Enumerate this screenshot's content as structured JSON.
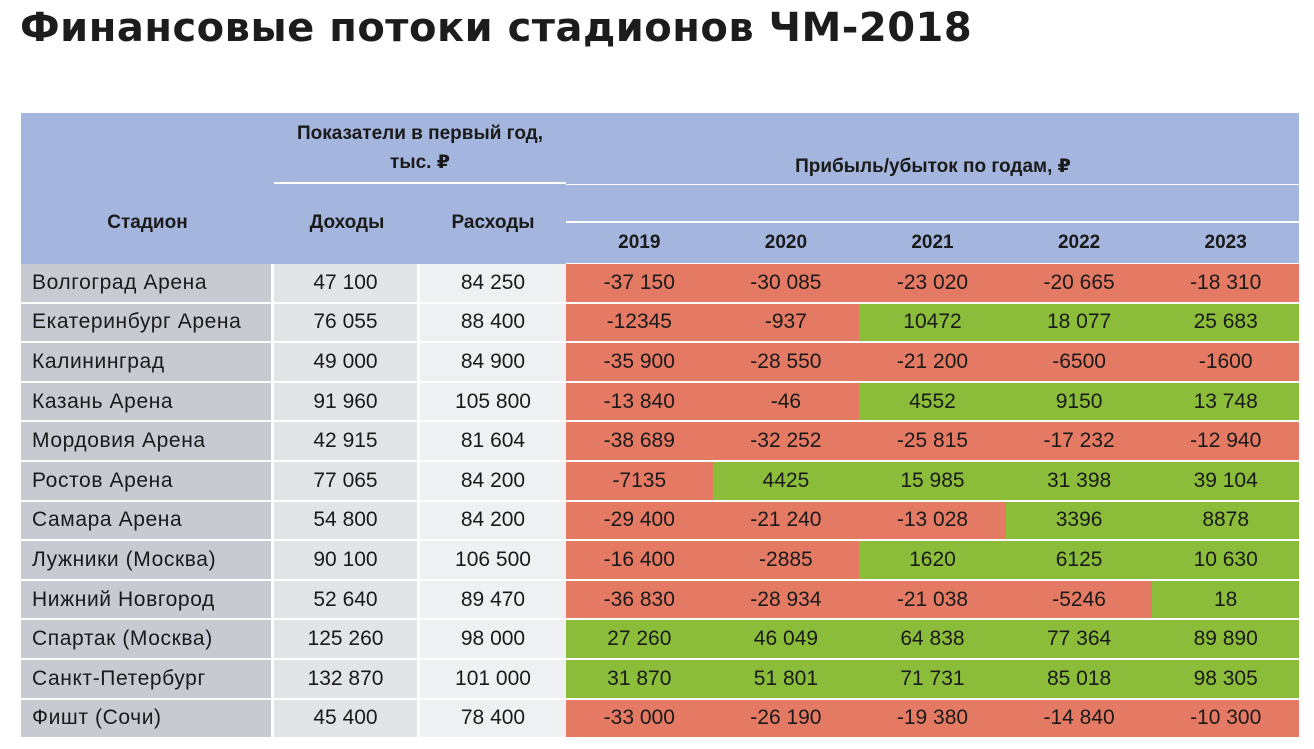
{
  "title": "Финансовые потоки стадионов ЧМ-2018",
  "headers": {
    "stadium": "Стадион",
    "first_year_group": "Показатели в первый год, тыс. ₽",
    "income": "Доходы",
    "expenses": "Расходы",
    "profit_group": "Прибыль/убыток по годам, ₽",
    "years": [
      "2019",
      "2020",
      "2021",
      "2022",
      "2023"
    ]
  },
  "colors": {
    "header_bg": "#a4b6de",
    "loss": "#e57a64",
    "profit": "#8bbd3b",
    "name_bg": "#c7cad1"
  },
  "rows": [
    {
      "name": "Волгоград Арена",
      "income": "47 100",
      "expenses": "84 250",
      "profit": [
        "-37 150",
        "-30 085",
        "-23 020",
        "-20 665",
        "-18 310"
      ]
    },
    {
      "name": "Екатеринбург Арена",
      "income": "76 055",
      "expenses": "88 400",
      "profit": [
        "-12345",
        "-937",
        "10472",
        "18 077",
        "25 683"
      ]
    },
    {
      "name": "Калининград",
      "income": "49 000",
      "expenses": "84 900",
      "profit": [
        "-35 900",
        "-28 550",
        "-21 200",
        "-6500",
        "-1600"
      ]
    },
    {
      "name": "Казань Арена",
      "income": "91 960",
      "expenses": "105 800",
      "profit": [
        "-13 840",
        "-46",
        "4552",
        "9150",
        "13 748"
      ]
    },
    {
      "name": "Мордовия Арена",
      "income": "42 915",
      "expenses": "81 604",
      "profit": [
        "-38 689",
        "-32 252",
        "-25 815",
        "-17 232",
        "-12 940"
      ]
    },
    {
      "name": "Ростов Арена",
      "income": "77 065",
      "expenses": "84 200",
      "profit": [
        "-7135",
        "4425",
        "15 985",
        "31 398",
        "39 104"
      ]
    },
    {
      "name": "Самара Арена",
      "income": "54 800",
      "expenses": "84 200",
      "profit": [
        "-29 400",
        "-21 240",
        "-13 028",
        "3396",
        "8878"
      ]
    },
    {
      "name": "Лужники (Москва)",
      "income": "90 100",
      "expenses": "106 500",
      "profit": [
        "-16 400",
        "-2885",
        "1620",
        "6125",
        "10 630"
      ]
    },
    {
      "name": "Нижний Новгород",
      "income": "52 640",
      "expenses": "89 470",
      "profit": [
        "-36 830",
        "-28 934",
        "-21 038",
        "-5246",
        "18"
      ]
    },
    {
      "name": "Спартак (Москва)",
      "income": "125 260",
      "expenses": "98 000",
      "profit": [
        "27 260",
        "46 049",
        "64 838",
        "77 364",
        "89 890"
      ]
    },
    {
      "name": "Санкт-Петербург",
      "income": "132 870",
      "expenses": "101 000",
      "profit": [
        "31 870",
        "51 801",
        "71 731",
        "85 018",
        "98 305"
      ]
    },
    {
      "name": "Фишт (Сочи)",
      "income": "45 400",
      "expenses": "78 400",
      "profit": [
        "-33 000",
        "-26 190",
        "-19 380",
        "-14 840",
        "-10 300"
      ]
    }
  ]
}
